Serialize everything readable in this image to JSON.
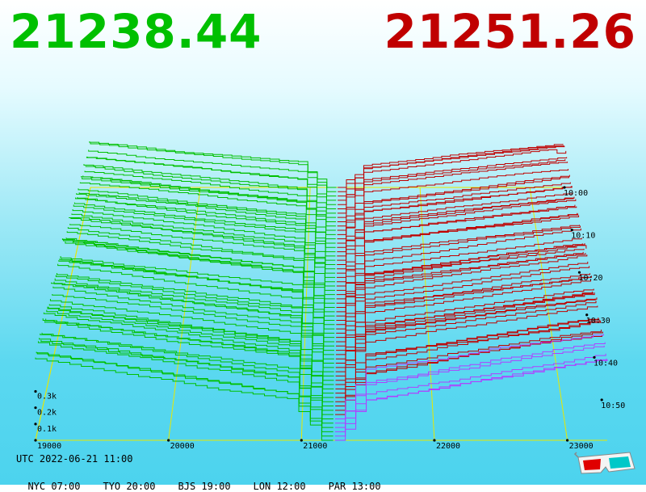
{
  "prices": {
    "bid": "21238.44",
    "ask": "21251.26"
  },
  "colors": {
    "bid": "#00c000",
    "ask": "#c00000",
    "grid": "#e8e800",
    "baseline": "#b040ff"
  },
  "chart_data": {
    "type": "area",
    "chart_style": "3d-orderbook-depth-waterfall",
    "x_ticks": [
      19000,
      20000,
      21000,
      22000,
      23000
    ],
    "x_tick_labels": [
      "19000",
      "20000",
      "21000",
      "22000",
      "23000"
    ],
    "depth_ticks": [
      "0.1k",
      "0.2k",
      "0.3k"
    ],
    "time_ticks": [
      "10:00",
      "10:10",
      "10:20",
      "10:30",
      "10:40",
      "10:50"
    ],
    "x_range": [
      19000,
      23300
    ],
    "depth_range_k": [
      0,
      0.35
    ],
    "bid_price": 21238.44,
    "ask_price": 21251.26,
    "series": [
      {
        "side": "bid",
        "from_price": 21238.44,
        "to_price": 19000
      },
      {
        "side": "ask",
        "from_price": 21251.26,
        "to_price": 23300
      }
    ]
  },
  "footer": {
    "utc": "UTC 2022-06-21 11:00",
    "zones": [
      "NYC 07:00",
      "TYO 20:00",
      "BJS 19:00",
      "LON 12:00",
      "PAR 13:00"
    ]
  },
  "icons": {
    "glasses": "3d-glasses-icon"
  }
}
